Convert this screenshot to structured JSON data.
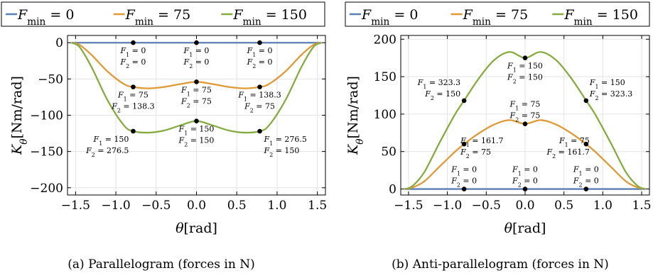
{
  "legend": [
    {
      "name": "F_min = 0",
      "color": "#5b7fb5"
    },
    {
      "name": "F_min = 75",
      "color": "#df9a36"
    },
    {
      "name": "F_min = 150",
      "color": "#86ac41"
    }
  ],
  "chart_data": [
    {
      "type": "line",
      "caption": "(a) Parallelogram (forces in N)",
      "xlabel": "θ[rad]",
      "ylabel": "K_θ[Nm/rad]",
      "xlim": [
        -1.6,
        1.6
      ],
      "ylim": [
        -210,
        10
      ],
      "xticks": [
        -1.5,
        -1.0,
        -0.5,
        0.0,
        0.5,
        1.0,
        1.5
      ],
      "xtick_labels": [
        "−1.5",
        "−1.0",
        "−0.5",
        "0.0",
        "0.5",
        "1.0",
        "1.5"
      ],
      "yticks": [
        0,
        -50,
        -100,
        -150,
        -200
      ],
      "ytick_labels": [
        "0",
        "−50",
        "−100",
        "−150",
        "−200"
      ],
      "grid": true,
      "series": [
        {
          "name": "F_min = 0",
          "x": [
            -1.55,
            -1.45,
            -1.3,
            -1.1,
            -0.9,
            -0.785,
            -0.6,
            -0.4,
            -0.2,
            0.0,
            0.2,
            0.4,
            0.6,
            0.785,
            0.9,
            1.1,
            1.3,
            1.45,
            1.55
          ],
          "y": [
            0,
            0,
            0,
            0,
            0,
            0,
            0,
            0,
            0,
            0,
            0,
            0,
            0,
            0,
            0,
            0,
            0,
            0,
            0
          ]
        },
        {
          "name": "F_min = 75",
          "x": [
            -1.55,
            -1.45,
            -1.3,
            -1.1,
            -0.9,
            -0.785,
            -0.6,
            -0.4,
            -0.2,
            0.0,
            0.2,
            0.4,
            0.6,
            0.785,
            0.9,
            1.1,
            1.3,
            1.45,
            1.55
          ],
          "y": [
            0,
            -3,
            -17,
            -40,
            -57,
            -61,
            -63,
            -61,
            -57,
            -54,
            -57,
            -61,
            -63,
            -61,
            -57,
            -40,
            -17,
            -3,
            0
          ]
        },
        {
          "name": "F_min = 150",
          "x": [
            -1.55,
            -1.45,
            -1.3,
            -1.1,
            -0.9,
            -0.785,
            -0.6,
            -0.4,
            -0.2,
            0.0,
            0.2,
            0.4,
            0.6,
            0.785,
            0.9,
            1.1,
            1.3,
            1.45,
            1.55
          ],
          "y": [
            0,
            -6,
            -34,
            -80,
            -114,
            -122,
            -124,
            -121,
            -114,
            -108,
            -114,
            -121,
            -124,
            -122,
            -114,
            -80,
            -34,
            -6,
            0
          ]
        }
      ],
      "points": [
        {
          "x": -0.785,
          "y": 0,
          "label": [
            "F1 = 0",
            "F2 = 0"
          ],
          "anchor": "below"
        },
        {
          "x": 0.0,
          "y": 0,
          "label": [
            "F1 = 0",
            "F2 = 0"
          ],
          "anchor": "below"
        },
        {
          "x": 0.785,
          "y": 0,
          "label": [
            "F1 = 0",
            "F2 = 0"
          ],
          "anchor": "below"
        },
        {
          "x": -0.785,
          "y": -61,
          "label": [
            "F1 = 75",
            "F2 = 138.3"
          ],
          "anchor": "below"
        },
        {
          "x": 0.0,
          "y": -54,
          "label": [
            "F1 = 75",
            "F2 = 75"
          ],
          "anchor": "below"
        },
        {
          "x": 0.785,
          "y": -61,
          "label": [
            "F1 = 138.3",
            "F2 = 75"
          ],
          "anchor": "below"
        },
        {
          "x": -0.785,
          "y": -122,
          "label": [
            "F1 = 150",
            "F2 = 276.5"
          ],
          "anchor": "below-left"
        },
        {
          "x": 0.0,
          "y": -108,
          "label": [
            "F1 = 150",
            "F2 = 150"
          ],
          "anchor": "below"
        },
        {
          "x": 0.785,
          "y": -122,
          "label": [
            "F1 = 276.5",
            "F2 = 150"
          ],
          "anchor": "below-right"
        }
      ]
    },
    {
      "type": "line",
      "caption": "(b) Anti-parallelogram (forces in N)",
      "xlabel": "θ[rad]",
      "ylabel": "K_θ[Nm/rad]",
      "xlim": [
        -1.6,
        1.6
      ],
      "ylim": [
        -8,
        205
      ],
      "xticks": [
        -1.5,
        -1.0,
        -0.5,
        0.0,
        0.5,
        1.0,
        1.5
      ],
      "xtick_labels": [
        "−1.5",
        "−1.0",
        "−0.5",
        "0.0",
        "0.5",
        "1.0",
        "1.5"
      ],
      "yticks": [
        0,
        50,
        100,
        150,
        200
      ],
      "ytick_labels": [
        "0",
        "50",
        "100",
        "150",
        "200"
      ],
      "grid": true,
      "series": [
        {
          "name": "F_min = 0",
          "x": [
            -1.55,
            -1.45,
            -1.3,
            -1.1,
            -0.9,
            -0.785,
            -0.6,
            -0.4,
            -0.2,
            0.0,
            0.2,
            0.4,
            0.6,
            0.785,
            0.9,
            1.1,
            1.3,
            1.45,
            1.55
          ],
          "y": [
            0,
            0,
            0,
            0,
            0,
            0,
            0,
            0,
            0,
            0,
            0,
            0,
            0,
            0,
            0,
            0,
            0,
            0,
            0
          ]
        },
        {
          "name": "F_min = 75",
          "x": [
            -1.55,
            -1.45,
            -1.3,
            -1.1,
            -0.9,
            -0.785,
            -0.6,
            -0.4,
            -0.2,
            0.0,
            0.2,
            0.4,
            0.6,
            0.785,
            0.9,
            1.1,
            1.3,
            1.45,
            1.55
          ],
          "y": [
            0,
            2,
            10,
            30,
            50,
            60,
            74,
            86,
            92,
            87,
            92,
            86,
            74,
            60,
            50,
            30,
            10,
            2,
            0
          ]
        },
        {
          "name": "F_min = 150",
          "x": [
            -1.55,
            -1.45,
            -1.3,
            -1.1,
            -0.9,
            -0.785,
            -0.6,
            -0.4,
            -0.2,
            0.0,
            0.2,
            0.4,
            0.6,
            0.785,
            0.9,
            1.1,
            1.3,
            1.45,
            1.55
          ],
          "y": [
            0,
            4,
            22,
            62,
            100,
            118,
            147,
            172,
            183,
            175,
            183,
            172,
            147,
            118,
            100,
            62,
            22,
            4,
            0
          ]
        }
      ],
      "points": [
        {
          "x": -0.785,
          "y": 0,
          "label": [
            "F1 = 0",
            "F2 = 0"
          ],
          "anchor": "above"
        },
        {
          "x": 0.0,
          "y": 0,
          "label": [
            "F1 = 0",
            "F2 = 0"
          ],
          "anchor": "above"
        },
        {
          "x": 0.785,
          "y": 0,
          "label": [
            "F1 = 0",
            "F2 = 0"
          ],
          "anchor": "above"
        },
        {
          "x": -0.785,
          "y": 60,
          "label": [
            "F1 = 161.7",
            "F2 = 75"
          ],
          "anchor": "right-mid"
        },
        {
          "x": 0.0,
          "y": 87,
          "label": [
            "F1 = 75",
            "F2 = 75"
          ],
          "anchor": "above"
        },
        {
          "x": 0.785,
          "y": 60,
          "label": [
            "F1 = 75",
            "F2 = 161.7"
          ],
          "anchor": "left-mid"
        },
        {
          "x": -0.785,
          "y": 118,
          "label": [
            "F1 = 323.3",
            "F2 = 150"
          ],
          "anchor": "above-left"
        },
        {
          "x": 0.0,
          "y": 175,
          "label": [
            "F1 = 150",
            "F2 = 150"
          ],
          "anchor": "below"
        },
        {
          "x": 0.785,
          "y": 118,
          "label": [
            "F1 = 150",
            "F2 = 323.3"
          ],
          "anchor": "above-right"
        }
      ]
    }
  ]
}
